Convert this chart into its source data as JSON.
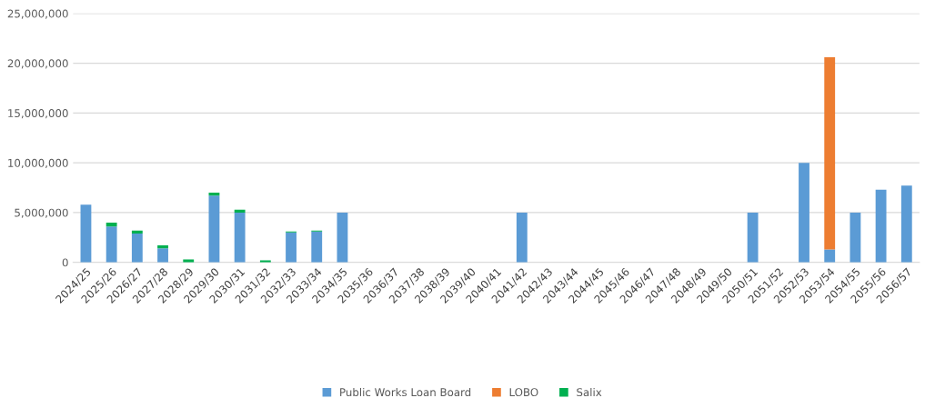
{
  "chart_data": {
    "type": "bar",
    "stacked": true,
    "categories": [
      "2024/25",
      "2025/26",
      "2026/27",
      "2027/28",
      "2028/29",
      "2029/30",
      "2030/31",
      "2031/32",
      "2032/33",
      "2033/34",
      "2034/35",
      "2035/36",
      "2036/37",
      "2037/38",
      "2038/39",
      "2039/40",
      "2040/41",
      "2041/42",
      "2042/43",
      "2043/44",
      "2044/45",
      "2045/46",
      "2046/47",
      "2047/48",
      "2048/49",
      "2049/50",
      "2050/51",
      "2051/52",
      "2052/53",
      "2053/54",
      "2054/55",
      "2055/56",
      "2056/57"
    ],
    "series": [
      {
        "name": "Public Works Loan Board",
        "color": "#5b9bd5",
        "values": [
          5800000,
          3600000,
          2900000,
          1400000,
          0,
          6700000,
          5000000,
          0,
          3000000,
          3100000,
          5000000,
          0,
          0,
          0,
          0,
          0,
          0,
          5000000,
          0,
          0,
          0,
          0,
          0,
          0,
          0,
          0,
          5000000,
          0,
          10000000,
          1300000,
          5000000,
          7300000,
          7700000
        ]
      },
      {
        "name": "LOBO",
        "color": "#ed7d31",
        "values": [
          0,
          0,
          0,
          0,
          0,
          0,
          0,
          0,
          0,
          0,
          0,
          0,
          0,
          0,
          0,
          0,
          0,
          0,
          0,
          0,
          0,
          0,
          0,
          0,
          0,
          0,
          0,
          0,
          0,
          19300000,
          0,
          0,
          0
        ]
      },
      {
        "name": "Salix",
        "color": "#00b050",
        "values": [
          0,
          400000,
          300000,
          300000,
          300000,
          300000,
          300000,
          200000,
          100000,
          100000,
          0,
          0,
          0,
          0,
          0,
          0,
          0,
          0,
          0,
          0,
          0,
          0,
          0,
          0,
          0,
          0,
          0,
          0,
          0,
          0,
          0,
          0,
          0
        ]
      }
    ],
    "ylim": [
      0,
      25000000
    ],
    "yticks": [
      {
        "value": 0,
        "label": "0"
      },
      {
        "value": 5000000,
        "label": "5,000,000"
      },
      {
        "value": 10000000,
        "label": "10,000,000"
      },
      {
        "value": 15000000,
        "label": "15,000,000"
      },
      {
        "value": 20000000,
        "label": "20,000,000"
      },
      {
        "value": 25000000,
        "label": "25,000,000"
      }
    ],
    "grid": "y",
    "legend": "bottom"
  }
}
